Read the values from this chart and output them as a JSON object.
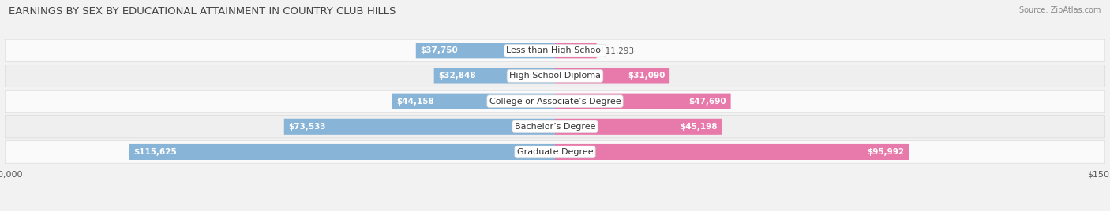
{
  "title": "EARNINGS BY SEX BY EDUCATIONAL ATTAINMENT IN COUNTRY CLUB HILLS",
  "source": "Source: ZipAtlas.com",
  "categories": [
    "Less than High School",
    "High School Diploma",
    "College or Associate’s Degree",
    "Bachelor’s Degree",
    "Graduate Degree"
  ],
  "male_values": [
    37750,
    32848,
    44158,
    73533,
    115625
  ],
  "female_values": [
    11293,
    31090,
    47690,
    45198,
    95992
  ],
  "male_color": "#88b4d8",
  "female_color": "#e87aab",
  "max_value": 150000,
  "bar_height": 0.62,
  "background_color": "#f2f2f2",
  "row_colors": [
    "#fafafa",
    "#efefef",
    "#fafafa",
    "#efefef",
    "#fafafa"
  ],
  "title_fontsize": 9.5,
  "label_fontsize": 8.0,
  "value_fontsize": 7.5,
  "legend_fontsize": 8.5,
  "value_color_inside": "#ffffff",
  "value_color_outside": "#555555"
}
